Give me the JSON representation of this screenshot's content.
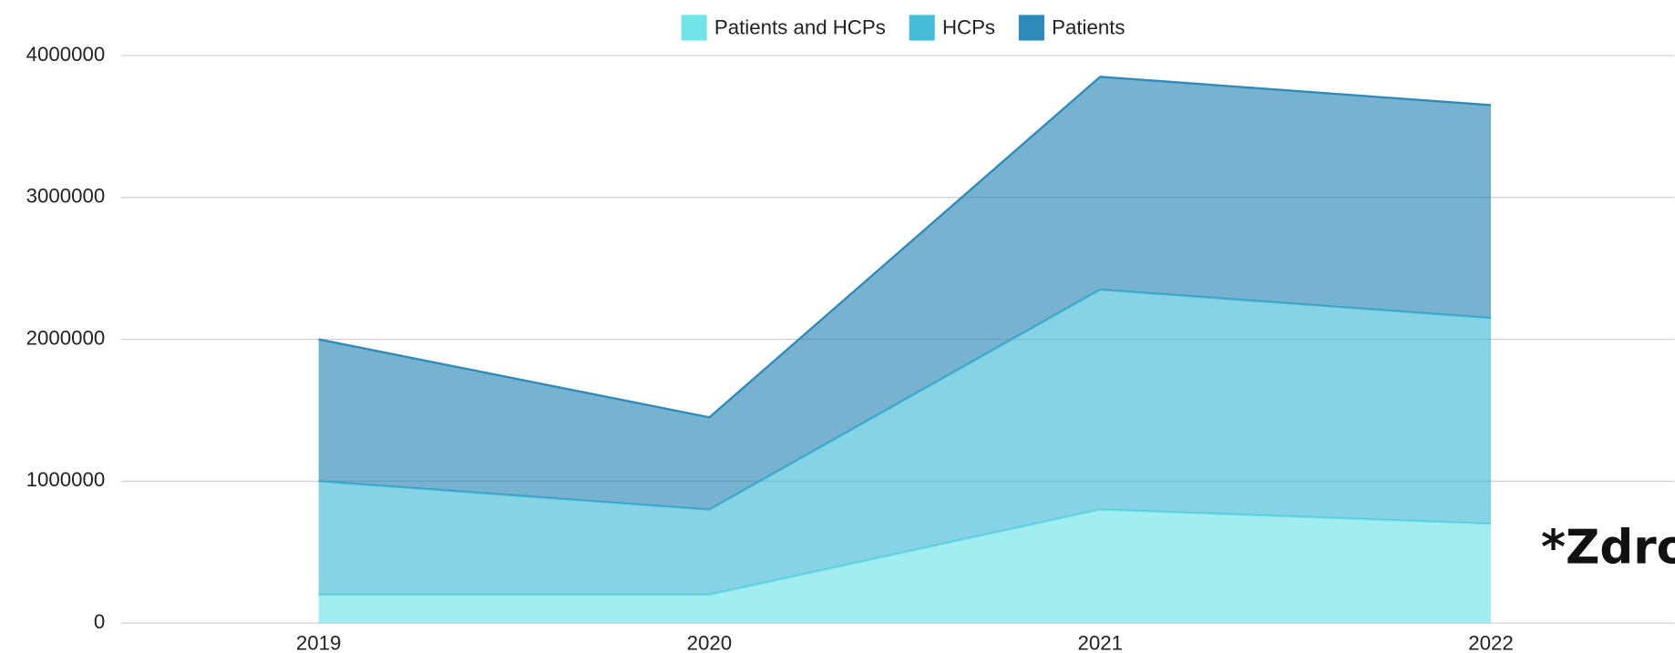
{
  "chart_data": {
    "type": "stacked_area",
    "categories": [
      "2019",
      "2020",
      "2021",
      "2022"
    ],
    "series": [
      {
        "name": "Patients and HCPs",
        "color": "#70e4e8",
        "values": [
          200000,
          200000,
          800000,
          700000
        ]
      },
      {
        "name": "HCPs",
        "color": "#45bcd8",
        "values": [
          800000,
          600000,
          1550000,
          1450000
        ]
      },
      {
        "name": "Patients",
        "color": "#2e8ab8",
        "values": [
          1000000,
          650000,
          1500000,
          1500000
        ]
      }
    ],
    "ylim": [
      0,
      4000000
    ],
    "yticks": [
      0,
      1000000,
      2000000,
      3000000,
      4000000
    ],
    "grid": true,
    "legend": "top",
    "annotation": "*Zdroj"
  }
}
